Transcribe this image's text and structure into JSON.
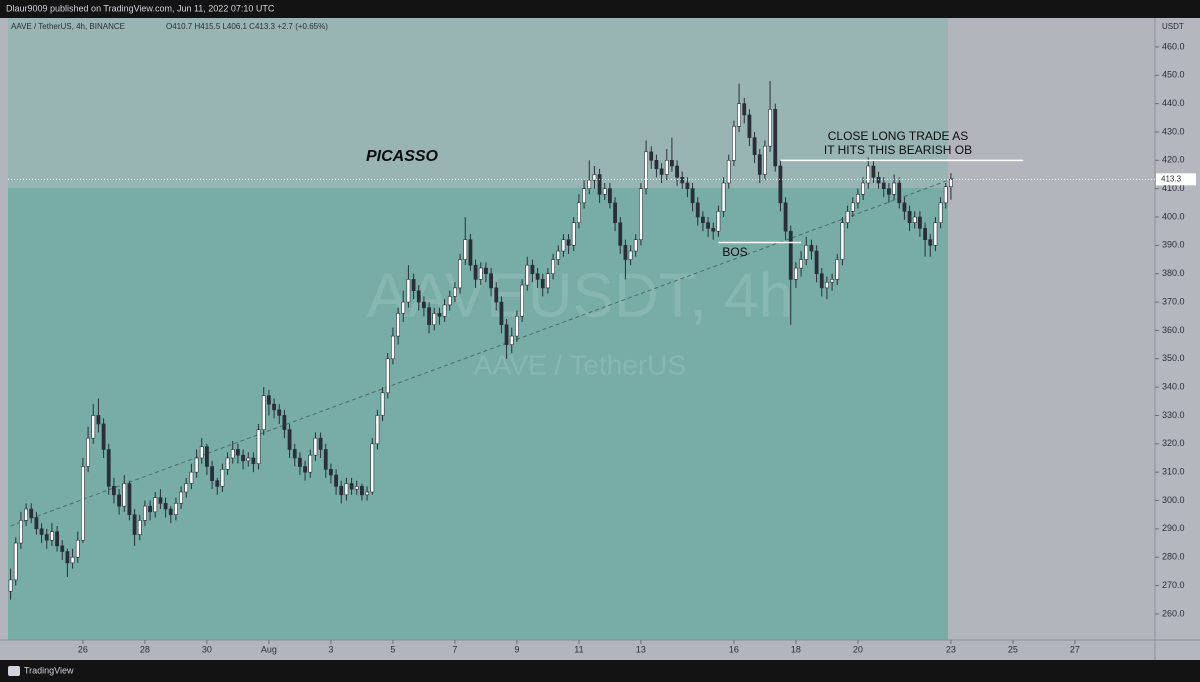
{
  "header": {
    "publisher": "Dlaur9009 published on TradingView.com, Jun 11, 2022 07:10 UTC",
    "symbol": "AAVE / TetherUS, 4h, BINANCE",
    "ohlc": "O410.7 H415.5 L406.1 C413.3 +2.7 (+0.65%)",
    "currency": "USDT"
  },
  "footer": {
    "brand": "TradingView"
  },
  "chart_data": {
    "type": "candlestick",
    "watermark": [
      "AAVEUSDT, 4h",
      "AAVE / TetherUS"
    ],
    "annotations": [
      "PICASSO",
      "CLOSE LONG TRADE AS",
      "IT HITS THIS BEARISH OB",
      "BOS"
    ],
    "levels": [
      {
        "value": 420,
        "x": [
          153,
          200
        ]
      },
      {
        "value": 391,
        "x": [
          141,
          157
        ]
      }
    ],
    "trendline": {
      "x": [
        4,
        187
      ],
      "y": [
        291,
        414
      ]
    },
    "colors": {
      "up": "#ffffff",
      "down": "#2a2e39",
      "wick": "#2a2e39"
    },
    "xlim": [
      3.5,
      225.5
    ],
    "xticks": [
      {
        "value": 18,
        "label": "26"
      },
      {
        "value": 30,
        "label": "28"
      },
      {
        "value": 42,
        "label": "30"
      },
      {
        "value": 54,
        "label": "Aug"
      },
      {
        "value": 66,
        "label": "3"
      },
      {
        "value": 78,
        "label": "5"
      },
      {
        "value": 90,
        "label": "7"
      },
      {
        "value": 102,
        "label": "9"
      },
      {
        "value": 114,
        "label": "11"
      },
      {
        "value": 126,
        "label": "13"
      },
      {
        "value": 144,
        "label": "16"
      },
      {
        "value": 156,
        "label": "18"
      },
      {
        "value": 168,
        "label": "20"
      },
      {
        "value": 186,
        "label": "23"
      },
      {
        "value": 198,
        "label": "25"
      },
      {
        "value": 210,
        "label": "27"
      }
    ],
    "ylim": [
      250.8,
      470.2
    ],
    "yticks": [
      {
        "value": 260,
        "label": "260.0"
      },
      {
        "value": 270,
        "label": "270.0"
      },
      {
        "value": 280,
        "label": "280.0"
      },
      {
        "value": 290,
        "label": "290.0"
      },
      {
        "value": 300,
        "label": "300.0"
      },
      {
        "value": 310,
        "label": "310.0"
      },
      {
        "value": 320,
        "label": "320.0"
      },
      {
        "value": 330,
        "label": "330.0"
      },
      {
        "value": 340,
        "label": "340.0"
      },
      {
        "value": 350,
        "label": "350.0"
      },
      {
        "value": 360,
        "label": "360.0"
      },
      {
        "value": 370,
        "label": "370.0"
      },
      {
        "value": 380,
        "label": "380.0"
      },
      {
        "value": 390,
        "label": "390.0"
      },
      {
        "value": 400,
        "label": "400.0"
      },
      {
        "value": 410,
        "label": "410.0"
      },
      {
        "value": 420,
        "label": "420.0"
      },
      {
        "value": 430,
        "label": "430.0"
      },
      {
        "value": 440,
        "label": "440.0"
      },
      {
        "value": 450,
        "label": "450.0"
      },
      {
        "value": 460,
        "label": "460.0"
      }
    ],
    "x": [
      4,
      5,
      6,
      7,
      8,
      9,
      10,
      11,
      12,
      13,
      14,
      15,
      16,
      17,
      18,
      19,
      20,
      21,
      22,
      23,
      24,
      25,
      26,
      27,
      28,
      29,
      30,
      31,
      32,
      33,
      34,
      35,
      36,
      37,
      38,
      39,
      40,
      41,
      42,
      43,
      44,
      45,
      46,
      47,
      48,
      49,
      50,
      51,
      52,
      53,
      54,
      55,
      56,
      57,
      58,
      59,
      60,
      61,
      62,
      63,
      64,
      65,
      66,
      67,
      68,
      69,
      70,
      71,
      72,
      73,
      74,
      75,
      76,
      77,
      78,
      79,
      80,
      81,
      82,
      83,
      84,
      85,
      86,
      87,
      88,
      89,
      90,
      91,
      92,
      93,
      94,
      95,
      96,
      97,
      98,
      99,
      100,
      101,
      102,
      103,
      104,
      105,
      106,
      107,
      108,
      109,
      110,
      111,
      112,
      113,
      114,
      115,
      116,
      117,
      118,
      119,
      120,
      121,
      122,
      123,
      124,
      125,
      126,
      127,
      128,
      129,
      130,
      131,
      132,
      133,
      134,
      135,
      136,
      137,
      138,
      139,
      140,
      141,
      142,
      143,
      144,
      145,
      146,
      147,
      148,
      149,
      150,
      151,
      152,
      153,
      154,
      155,
      156,
      157,
      158,
      159,
      160,
      161,
      162,
      163,
      164,
      165,
      166,
      167,
      168,
      169,
      170,
      171,
      172,
      173,
      174,
      175,
      176,
      177,
      178,
      179,
      180,
      181,
      182,
      183,
      184,
      185,
      186
    ],
    "candles": [
      [
        268,
        276,
        265,
        272
      ],
      [
        272,
        287,
        270,
        285
      ],
      [
        285,
        296,
        283,
        293
      ],
      [
        293,
        299,
        291,
        297
      ],
      [
        297,
        299,
        292,
        294
      ],
      [
        294,
        296,
        288,
        290
      ],
      [
        290,
        292,
        285,
        288
      ],
      [
        288,
        290,
        283,
        286
      ],
      [
        286,
        292,
        284,
        289
      ],
      [
        289,
        291,
        282,
        284
      ],
      [
        284,
        286,
        279,
        282
      ],
      [
        282,
        283,
        273,
        278
      ],
      [
        278,
        283,
        276,
        280
      ],
      [
        280,
        289,
        278,
        286
      ],
      [
        286,
        315,
        285,
        312
      ],
      [
        312,
        326,
        310,
        322
      ],
      [
        322,
        334,
        320,
        330
      ],
      [
        330,
        336,
        324,
        327
      ],
      [
        327,
        329,
        315,
        318
      ],
      [
        318,
        320,
        302,
        305
      ],
      [
        305,
        308,
        299,
        302
      ],
      [
        302,
        304,
        295,
        298
      ],
      [
        298,
        309,
        296,
        306
      ],
      [
        306,
        307,
        293,
        295
      ],
      [
        295,
        297,
        284,
        288
      ],
      [
        288,
        295,
        286,
        293
      ],
      [
        293,
        300,
        291,
        298
      ],
      [
        298,
        300,
        293,
        296
      ],
      [
        296,
        303,
        294,
        301
      ],
      [
        301,
        304,
        297,
        299
      ],
      [
        299,
        301,
        294,
        297
      ],
      [
        297,
        298,
        292,
        295
      ],
      [
        295,
        301,
        293,
        299
      ],
      [
        299,
        305,
        297,
        303
      ],
      [
        303,
        308,
        301,
        306
      ],
      [
        306,
        313,
        304,
        310
      ],
      [
        310,
        318,
        308,
        315
      ],
      [
        315,
        322,
        313,
        319
      ],
      [
        319,
        320,
        309,
        312
      ],
      [
        312,
        314,
        304,
        307
      ],
      [
        307,
        308,
        302,
        305
      ],
      [
        305,
        313,
        303,
        311
      ],
      [
        311,
        317,
        309,
        315
      ],
      [
        315,
        321,
        313,
        318
      ],
      [
        318,
        320,
        313,
        316
      ],
      [
        316,
        318,
        311,
        314
      ],
      [
        314,
        317,
        312,
        315
      ],
      [
        315,
        317,
        310,
        313
      ],
      [
        313,
        327,
        311,
        325
      ],
      [
        325,
        340,
        323,
        337
      ],
      [
        337,
        339,
        330,
        334
      ],
      [
        334,
        336,
        329,
        332
      ],
      [
        332,
        334,
        327,
        330
      ],
      [
        330,
        332,
        322,
        325
      ],
      [
        325,
        327,
        315,
        318
      ],
      [
        318,
        320,
        312,
        315
      ],
      [
        315,
        317,
        309,
        312
      ],
      [
        312,
        314,
        307,
        310
      ],
      [
        310,
        318,
        308,
        316
      ],
      [
        316,
        324,
        314,
        322
      ],
      [
        322,
        324,
        315,
        318
      ],
      [
        318,
        320,
        308,
        311
      ],
      [
        311,
        313,
        306,
        309
      ],
      [
        309,
        311,
        302,
        305
      ],
      [
        305,
        307,
        299,
        302
      ],
      [
        302,
        308,
        300,
        306
      ],
      [
        306,
        308,
        302,
        304
      ],
      [
        304,
        307,
        302,
        305
      ],
      [
        305,
        306,
        300,
        302
      ],
      [
        302,
        305,
        300,
        303
      ],
      [
        303,
        322,
        302,
        320
      ],
      [
        320,
        332,
        318,
        330
      ],
      [
        330,
        340,
        328,
        338
      ],
      [
        338,
        352,
        336,
        350
      ],
      [
        350,
        361,
        348,
        358
      ],
      [
        358,
        368,
        355,
        366
      ],
      [
        366,
        374,
        363,
        370
      ],
      [
        370,
        383,
        368,
        378
      ],
      [
        378,
        380,
        371,
        374
      ],
      [
        374,
        376,
        367,
        370
      ],
      [
        370,
        372,
        365,
        368
      ],
      [
        368,
        370,
        359,
        362
      ],
      [
        362,
        368,
        360,
        366
      ],
      [
        366,
        368,
        362,
        365
      ],
      [
        365,
        371,
        363,
        369
      ],
      [
        369,
        374,
        367,
        372
      ],
      [
        372,
        377,
        370,
        375
      ],
      [
        375,
        387,
        373,
        385
      ],
      [
        385,
        400,
        383,
        392
      ],
      [
        392,
        394,
        381,
        383
      ],
      [
        383,
        385,
        375,
        378
      ],
      [
        378,
        384,
        376,
        382
      ],
      [
        382,
        384,
        377,
        380
      ],
      [
        380,
        382,
        372,
        375
      ],
      [
        375,
        377,
        367,
        370
      ],
      [
        370,
        372,
        359,
        362
      ],
      [
        362,
        364,
        350,
        355
      ],
      [
        355,
        361,
        352,
        358
      ],
      [
        358,
        367,
        356,
        365
      ],
      [
        365,
        378,
        363,
        376
      ],
      [
        376,
        386,
        374,
        383
      ],
      [
        383,
        385,
        377,
        380
      ],
      [
        380,
        382,
        375,
        378
      ],
      [
        378,
        380,
        372,
        375
      ],
      [
        375,
        382,
        373,
        380
      ],
      [
        380,
        387,
        378,
        385
      ],
      [
        385,
        390,
        383,
        388
      ],
      [
        388,
        394,
        386,
        392
      ],
      [
        392,
        394,
        387,
        390
      ],
      [
        390,
        400,
        388,
        398
      ],
      [
        398,
        408,
        396,
        405
      ],
      [
        405,
        413,
        403,
        410
      ],
      [
        410,
        420,
        408,
        413
      ],
      [
        413,
        418,
        410,
        415
      ],
      [
        415,
        417,
        405,
        408
      ],
      [
        408,
        412,
        406,
        410
      ],
      [
        410,
        412,
        403,
        405
      ],
      [
        405,
        407,
        395,
        398
      ],
      [
        398,
        400,
        387,
        390
      ],
      [
        390,
        392,
        378,
        385
      ],
      [
        385,
        390,
        383,
        388
      ],
      [
        388,
        394,
        386,
        392
      ],
      [
        392,
        412,
        390,
        410
      ],
      [
        410,
        427,
        408,
        423
      ],
      [
        423,
        425,
        417,
        420
      ],
      [
        420,
        422,
        414,
        417
      ],
      [
        417,
        419,
        412,
        415
      ],
      [
        415,
        424,
        413,
        420
      ],
      [
        420,
        428,
        416,
        418
      ],
      [
        418,
        420,
        411,
        414
      ],
      [
        414,
        416,
        410,
        412
      ],
      [
        412,
        414,
        407,
        410
      ],
      [
        410,
        412,
        402,
        405
      ],
      [
        405,
        407,
        397,
        400
      ],
      [
        400,
        402,
        395,
        398
      ],
      [
        398,
        400,
        393,
        396
      ],
      [
        396,
        398,
        392,
        395
      ],
      [
        395,
        404,
        393,
        402
      ],
      [
        402,
        414,
        400,
        412
      ],
      [
        412,
        422,
        410,
        420
      ],
      [
        420,
        434,
        418,
        432
      ],
      [
        432,
        447,
        430,
        440
      ],
      [
        440,
        442,
        433,
        436
      ],
      [
        436,
        438,
        425,
        428
      ],
      [
        428,
        430,
        419,
        422
      ],
      [
        422,
        424,
        412,
        415
      ],
      [
        415,
        427,
        413,
        425
      ],
      [
        425,
        448,
        423,
        438
      ],
      [
        438,
        440,
        416,
        418
      ],
      [
        418,
        420,
        402,
        405
      ],
      [
        405,
        407,
        392,
        395
      ],
      [
        395,
        397,
        362,
        378
      ],
      [
        378,
        384,
        375,
        382
      ],
      [
        382,
        388,
        379,
        385
      ],
      [
        385,
        393,
        383,
        390
      ],
      [
        390,
        392,
        385,
        388
      ],
      [
        388,
        390,
        377,
        380
      ],
      [
        380,
        382,
        372,
        375
      ],
      [
        375,
        379,
        371,
        377
      ],
      [
        377,
        380,
        374,
        378
      ],
      [
        378,
        387,
        376,
        385
      ],
      [
        385,
        400,
        383,
        398
      ],
      [
        398,
        404,
        396,
        402
      ],
      [
        402,
        407,
        400,
        405
      ],
      [
        405,
        410,
        403,
        408
      ],
      [
        408,
        414,
        406,
        412
      ],
      [
        412,
        421,
        410,
        418
      ],
      [
        418,
        420,
        412,
        414
      ],
      [
        414,
        416,
        410,
        412
      ],
      [
        412,
        414,
        407,
        410
      ],
      [
        410,
        412,
        405,
        408
      ],
      [
        408,
        415,
        406,
        412
      ],
      [
        412,
        414,
        403,
        405
      ],
      [
        405,
        407,
        399,
        402
      ],
      [
        402,
        404,
        395,
        398
      ],
      [
        398,
        402,
        396,
        400
      ],
      [
        400,
        402,
        393,
        396
      ],
      [
        396,
        398,
        386,
        392
      ],
      [
        392,
        394,
        386,
        390
      ],
      [
        390,
        400,
        388,
        398
      ],
      [
        398,
        407,
        396,
        405
      ],
      [
        405,
        412,
        403,
        410.7
      ],
      [
        410.7,
        415.5,
        406.1,
        413.3
      ]
    ]
  }
}
